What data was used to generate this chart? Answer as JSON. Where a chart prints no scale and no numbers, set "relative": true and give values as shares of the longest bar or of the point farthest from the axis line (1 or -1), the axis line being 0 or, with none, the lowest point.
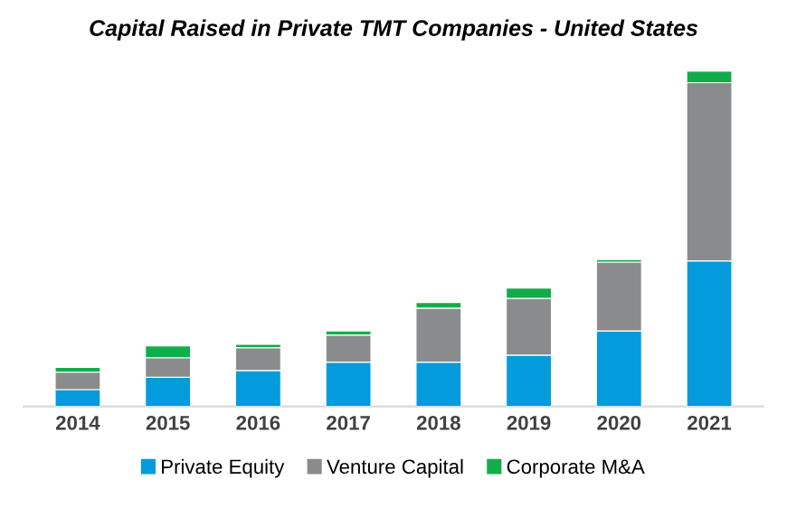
{
  "chart_data": {
    "type": "bar",
    "title": "Capital Raised in Private TMT Companies - United States",
    "categories": [
      "2014",
      "2015",
      "2016",
      "2017",
      "2018",
      "2019",
      "2020",
      "2021"
    ],
    "stacked": true,
    "relative": true,
    "legend": "bottom",
    "series": [
      {
        "name": "Private Equity",
        "color": "#039bdb",
        "values": [
          0.05,
          0.087,
          0.107,
          0.132,
          0.132,
          0.153,
          0.225,
          0.434
        ]
      },
      {
        "name": "Venture Capital",
        "color": "#898b8d",
        "values": [
          0.052,
          0.058,
          0.068,
          0.081,
          0.161,
          0.169,
          0.205,
          0.531
        ]
      },
      {
        "name": "Corporate M&A",
        "color": "#12ad4b",
        "values": [
          0.014,
          0.035,
          0.01,
          0.012,
          0.017,
          0.031,
          0.008,
          0.035
        ]
      }
    ]
  }
}
